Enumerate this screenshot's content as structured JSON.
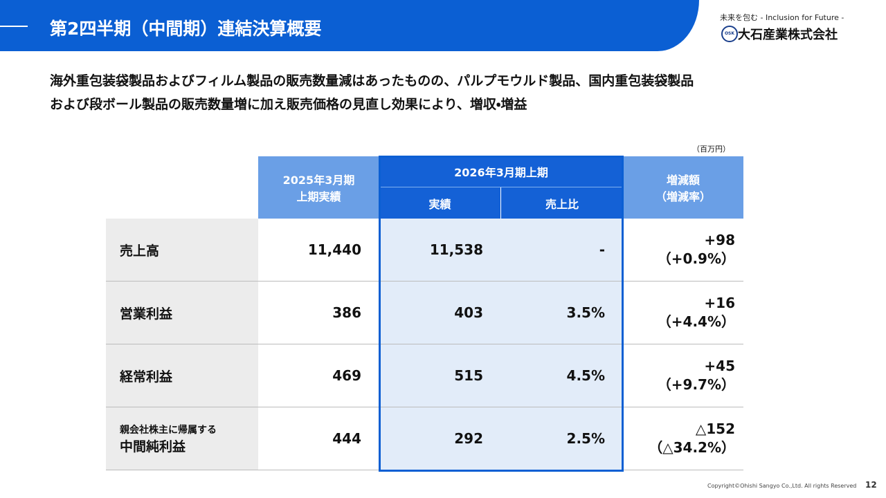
{
  "header": {
    "title": "第2四半期（中間期）連結決算概要"
  },
  "logo": {
    "tagline": "未来を包む - Inclusion for Future -",
    "mark": "OSK",
    "company": "大石産業株式会社"
  },
  "summary": [
    "海外重包装袋製品およびフィルム製品の販売数量減はあったものの、パルプモウルド製品、国内重包装袋製品",
    "および段ボール製品の販売数量増に加え販売価格の見直し効果により、増収・増益"
  ],
  "table": {
    "unit": "（百万円）",
    "headers": {
      "previous": [
        "2025年3月期",
        "上期実績"
      ],
      "current": "2026年3月期上期",
      "actual": "実績",
      "ratio": "売上比",
      "change": [
        "増減額",
        "（増減率）"
      ]
    },
    "rows": [
      {
        "label": [
          "売上高"
        ],
        "previous": "11,440",
        "actual": "11,538",
        "ratio": "-",
        "change": "+98",
        "change_rate": "（+0.9%）"
      },
      {
        "label": [
          "営業利益"
        ],
        "previous": "386",
        "actual": "403",
        "ratio": "3.5%",
        "change": "+16",
        "change_rate": "（+4.4%）"
      },
      {
        "label": [
          "経常利益"
        ],
        "previous": "469",
        "actual": "515",
        "ratio": "4.5%",
        "change": "+45",
        "change_rate": "（+9.7%）"
      },
      {
        "label": [
          "親会社株主に帰属する",
          "中間純利益"
        ],
        "previous": "444",
        "actual": "292",
        "ratio": "2.5%",
        "change": "△152",
        "change_rate": "（△34.2%）"
      }
    ]
  },
  "footer": {
    "copyright": "Copyright©Ohishi Sangyo Co.,Ltd. All rights Reserved",
    "page": "12"
  }
}
